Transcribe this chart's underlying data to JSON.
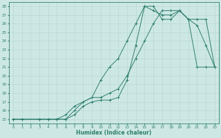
{
  "xlabel": "Humidex (Indice chaleur)",
  "bg_color": "#cde8e4",
  "grid_color": "#b8d8d4",
  "line_color": "#2e7d6e",
  "xlim": [
    -0.5,
    23.5
  ],
  "ylim": [
    14.5,
    28.5
  ],
  "xticks": [
    0,
    1,
    2,
    3,
    4,
    5,
    6,
    7,
    8,
    9,
    10,
    11,
    12,
    13,
    14,
    15,
    16,
    17,
    18,
    19,
    20,
    21,
    22,
    23
  ],
  "yticks": [
    15,
    16,
    17,
    18,
    19,
    20,
    21,
    22,
    23,
    24,
    25,
    26,
    27,
    28
  ],
  "line1_x": [
    0,
    1,
    3,
    4,
    5,
    6,
    7,
    8,
    9,
    10,
    11,
    12,
    13,
    14,
    15,
    16,
    17,
    18,
    19,
    20,
    21,
    22,
    23
  ],
  "line1_y": [
    15,
    15,
    15,
    15,
    15,
    15,
    15.5,
    16.5,
    17.0,
    17.2,
    17.2,
    17.5,
    19.5,
    23.5,
    28.0,
    27.5,
    27.0,
    27.0,
    27.5,
    26.5,
    25.8,
    23.5,
    21.0
  ],
  "line2_x": [
    0,
    1,
    3,
    4,
    5,
    6,
    7,
    8,
    9,
    10,
    11,
    12,
    13,
    14,
    15,
    16,
    17,
    18,
    19,
    20,
    21,
    22,
    23
  ],
  "line2_y": [
    15,
    15,
    15,
    15,
    15,
    15,
    16.0,
    17.0,
    17.5,
    19.5,
    21.0,
    22.0,
    24.0,
    26.0,
    28.0,
    28.0,
    26.5,
    26.5,
    27.5,
    26.5,
    21.0,
    21.0,
    21.0
  ],
  "line3_x": [
    0,
    3,
    5,
    6,
    7,
    9,
    10,
    11,
    12,
    13,
    14,
    15,
    16,
    17,
    18,
    19,
    20,
    21,
    22,
    23
  ],
  "line3_y": [
    15,
    15,
    15,
    15.5,
    16.5,
    17.5,
    17.5,
    18.0,
    18.5,
    20.0,
    22.0,
    24.0,
    26.0,
    27.5,
    27.5,
    27.5,
    26.5,
    26.5,
    26.5,
    21.0
  ]
}
